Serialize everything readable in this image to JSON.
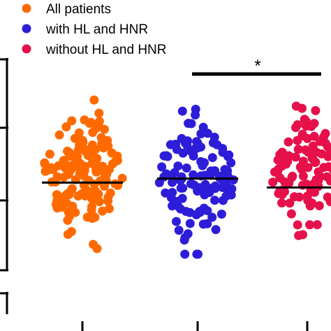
{
  "chart_data": {
    "type": "scatter",
    "legend": {
      "placement": "top-left",
      "entries": [
        {
          "label": "All patients",
          "color": "#ff6a00"
        },
        {
          "label": "with HL and HNR",
          "color": "#2d1dd8"
        },
        {
          "label": "without  HL and HNR",
          "color": "#e6104a"
        }
      ]
    },
    "series": [
      {
        "name": "All patients",
        "color": "#ff6a00",
        "mean": 0.48
      },
      {
        "name": "with HL and HNR",
        "color": "#2d1dd8",
        "mean": 0.53
      },
      {
        "name": "without  HL and HNR",
        "color": "#e6104a",
        "mean": 0.42
      }
    ],
    "significance": {
      "between": [
        1,
        2
      ],
      "label": "*"
    },
    "ylim": [
      -0.6,
      2.0
    ],
    "grid": false
  }
}
